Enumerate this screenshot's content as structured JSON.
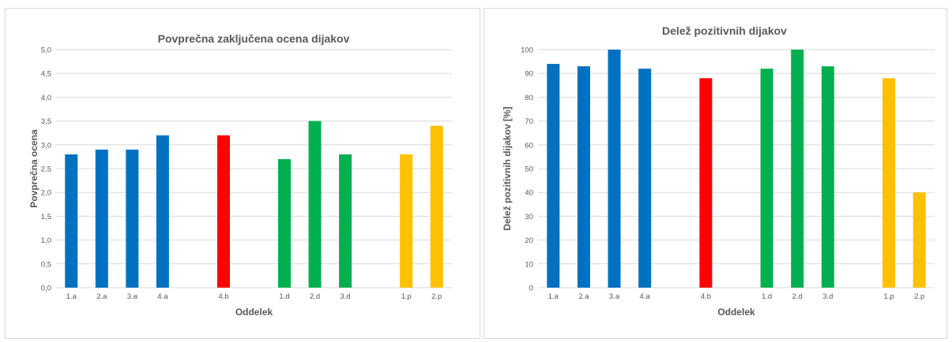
{
  "colors": {
    "a": "#0070c0",
    "b": "#ff0000",
    "d": "#00b050",
    "p": "#ffc000",
    "grid": "#d9d9d9",
    "text": "#595959"
  },
  "chart_data": [
    {
      "type": "bar",
      "title": "Povprečna zaključena ocena dijakov",
      "xlabel": "Oddelek",
      "ylabel": "Povprečna ocena",
      "ylim": [
        0,
        5
      ],
      "ytick_step": 0.5,
      "ytick_labels": [
        "0,0",
        "0,5",
        "1,0",
        "1,5",
        "2,0",
        "2,5",
        "3,0",
        "3,5",
        "4,0",
        "4,5",
        "5,0"
      ],
      "grid": true,
      "categories": [
        "1.a",
        "2.a",
        "3.a",
        "4.a",
        "",
        "4.b",
        "",
        "1.d",
        "2.d",
        "3.d",
        "",
        "1.p",
        "2.p"
      ],
      "values": [
        2.8,
        2.9,
        2.9,
        3.2,
        null,
        3.2,
        null,
        2.7,
        3.5,
        2.8,
        null,
        2.8,
        3.4
      ],
      "groups": [
        "a",
        "a",
        "a",
        "a",
        "",
        "b",
        "",
        "d",
        "d",
        "d",
        "",
        "p",
        "p"
      ]
    },
    {
      "type": "bar",
      "title": "Delež pozitivnih dijakov",
      "xlabel": "Oddelek",
      "ylabel": "Delež pozitivnih dijakov [%]",
      "ylim": [
        0,
        100
      ],
      "ytick_step": 10,
      "ytick_labels": [
        "0",
        "10",
        "20",
        "30",
        "40",
        "50",
        "60",
        "70",
        "80",
        "90",
        "100"
      ],
      "grid": true,
      "categories": [
        "1.a",
        "2.a",
        "3.a",
        "4.a",
        "",
        "4.b",
        "",
        "1.d",
        "2.d",
        "3.d",
        "",
        "1.p",
        "2.p"
      ],
      "values": [
        94,
        93,
        100,
        92,
        null,
        88,
        null,
        92,
        100,
        93,
        null,
        88,
        40
      ],
      "groups": [
        "a",
        "a",
        "a",
        "a",
        "",
        "b",
        "",
        "d",
        "d",
        "d",
        "",
        "p",
        "p"
      ]
    }
  ]
}
